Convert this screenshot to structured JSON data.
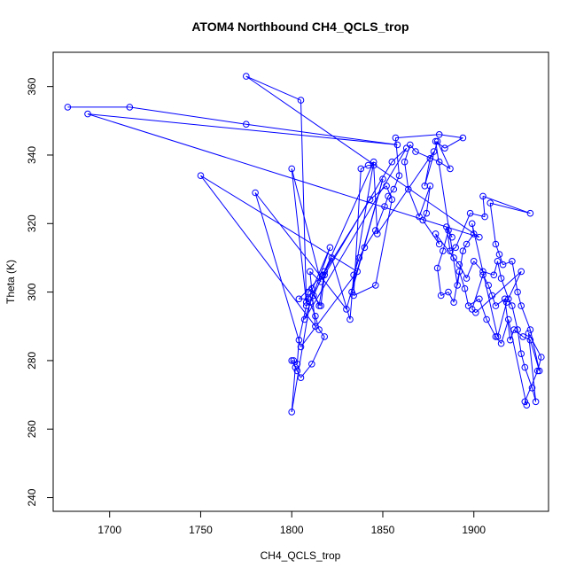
{
  "chart_data": {
    "type": "scatter",
    "title": "ATOM4 Northbound CH4_QCLS_trop",
    "xlabel": "CH4_QCLS_trop",
    "ylabel": "Theta (K)",
    "xlim": [
      1669,
      1941
    ],
    "ylim": [
      236,
      370
    ],
    "xticks": [
      1700,
      1750,
      1800,
      1850,
      1900
    ],
    "yticks": [
      240,
      260,
      280,
      300,
      320,
      340,
      360
    ],
    "grid": false,
    "legend": "none",
    "connected": true,
    "color": "#0000ff",
    "series": [
      {
        "points": [
          [
            1677,
            354
          ],
          [
            1711,
            354
          ],
          [
            1775,
            349
          ],
          [
            1858,
            343
          ],
          [
            1688,
            352
          ],
          [
            1903,
            316
          ],
          [
            1775,
            363
          ],
          [
            1805,
            356
          ],
          [
            1808,
            297
          ],
          [
            1800,
            336
          ],
          [
            1816,
            303
          ],
          [
            1810,
            306
          ],
          [
            1813,
            290
          ],
          [
            1750,
            334
          ],
          [
            1836,
            306
          ],
          [
            1805,
            284
          ],
          [
            1780,
            329
          ],
          [
            1830,
            295
          ],
          [
            1850,
            333
          ],
          [
            1833,
            300
          ],
          [
            1845,
            338
          ],
          [
            1812,
            299
          ],
          [
            1816,
            296
          ],
          [
            1818,
            305
          ],
          [
            1855,
            338
          ],
          [
            1863,
            342
          ],
          [
            1807,
            292
          ],
          [
            1821,
            313
          ],
          [
            1809,
            298
          ],
          [
            1804,
            298
          ],
          [
            1817,
            305
          ],
          [
            1843,
            327
          ],
          [
            1852,
            331
          ],
          [
            1855,
            327
          ],
          [
            1846,
            302
          ],
          [
            1834,
            299
          ],
          [
            1838,
            336
          ],
          [
            1842,
            337
          ],
          [
            1845,
            337
          ],
          [
            1847,
            317
          ],
          [
            1878,
            341
          ],
          [
            1876,
            339
          ],
          [
            1873,
            331
          ],
          [
            1880,
            344
          ],
          [
            1887,
            336
          ],
          [
            1881,
            338
          ],
          [
            1868,
            341
          ],
          [
            1865,
            343
          ],
          [
            1862,
            338
          ],
          [
            1864,
            330
          ],
          [
            1870,
            322
          ],
          [
            1876,
            331
          ],
          [
            1874,
            323
          ],
          [
            1872,
            321
          ],
          [
            1881,
            314
          ],
          [
            1879,
            317
          ],
          [
            1889,
            310
          ],
          [
            1892,
            308
          ],
          [
            1896,
            304
          ],
          [
            1900,
            309
          ],
          [
            1905,
            306
          ],
          [
            1911,
            305
          ],
          [
            1913,
            309
          ],
          [
            1915,
            304
          ],
          [
            1919,
            298
          ],
          [
            1921,
            296
          ],
          [
            1924,
            289
          ],
          [
            1926,
            282
          ],
          [
            1928,
            278
          ],
          [
            1932,
            272
          ],
          [
            1934,
            268
          ],
          [
            1930,
            288
          ],
          [
            1937,
            281
          ],
          [
            1935,
            277
          ],
          [
            1928,
            268
          ],
          [
            1929,
            267
          ],
          [
            1919,
            292
          ],
          [
            1915,
            285
          ],
          [
            1912,
            287
          ],
          [
            1907,
            292
          ],
          [
            1903,
            298
          ],
          [
            1897,
            296
          ],
          [
            1895,
            301
          ],
          [
            1892,
            306
          ],
          [
            1889,
            297
          ],
          [
            1886,
            300
          ],
          [
            1882,
            299
          ],
          [
            1880,
            307
          ],
          [
            1883,
            312
          ],
          [
            1886,
            318
          ],
          [
            1888,
            316
          ],
          [
            1885,
            319
          ],
          [
            1887,
            312
          ],
          [
            1890,
            313
          ],
          [
            1898,
            323
          ],
          [
            1906,
            322
          ],
          [
            1905,
            328
          ],
          [
            1931,
            323
          ],
          [
            1909,
            326
          ],
          [
            1912,
            314
          ],
          [
            1914,
            311
          ],
          [
            1916,
            308
          ],
          [
            1921,
            309
          ],
          [
            1924,
            300
          ],
          [
            1926,
            296
          ],
          [
            1931,
            289
          ],
          [
            1936,
            277
          ],
          [
            1931,
            286
          ],
          [
            1927,
            287
          ],
          [
            1922,
            289
          ],
          [
            1920,
            286
          ],
          [
            1917,
            298
          ],
          [
            1912,
            296
          ],
          [
            1910,
            299
          ],
          [
            1908,
            302
          ],
          [
            1905,
            305
          ],
          [
            1899,
            295
          ],
          [
            1901,
            294
          ],
          [
            1926,
            306
          ],
          [
            1918,
            297
          ],
          [
            1913,
            287
          ],
          [
            1899,
            320
          ],
          [
            1900,
            317
          ],
          [
            1896,
            314
          ],
          [
            1894,
            312
          ],
          [
            1891,
            302
          ],
          [
            1879,
            344
          ],
          [
            1884,
            342
          ],
          [
            1894,
            345
          ],
          [
            1881,
            346
          ],
          [
            1857,
            345
          ],
          [
            1859,
            334
          ],
          [
            1856,
            330
          ],
          [
            1853,
            328
          ],
          [
            1851,
            325
          ],
          [
            1846,
            318
          ],
          [
            1840,
            313
          ],
          [
            1837,
            310
          ],
          [
            1834,
            305
          ],
          [
            1832,
            292
          ],
          [
            1822,
            310
          ],
          [
            1818,
            306
          ],
          [
            1815,
            296
          ],
          [
            1811,
            301
          ],
          [
            1809,
            300
          ],
          [
            1808,
            296
          ],
          [
            1804,
            286
          ],
          [
            1803,
            279
          ],
          [
            1801,
            280
          ],
          [
            1800,
            280
          ],
          [
            1803,
            277
          ],
          [
            1805,
            275
          ],
          [
            1811,
            279
          ],
          [
            1818,
            287
          ],
          [
            1815,
            289
          ],
          [
            1813,
            293
          ],
          [
            1810,
            297
          ],
          [
            1800,
            265
          ],
          [
            1802,
            278
          ]
        ]
      }
    ]
  }
}
